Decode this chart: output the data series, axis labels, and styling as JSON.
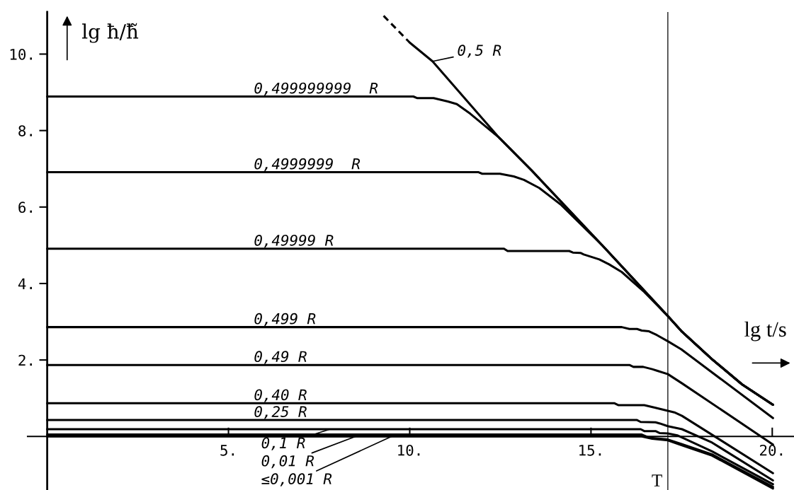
{
  "chart_data": {
    "type": "line",
    "xlabel": "lg t/s",
    "ylabel": "lg ħ/ħ̃",
    "xlim": [
      -0.54,
      20.6
    ],
    "ylim": [
      -1.4,
      11.1
    ],
    "xticks": [
      {
        "value": 5,
        "label": "5."
      },
      {
        "value": 10,
        "label": "10."
      },
      {
        "value": 15,
        "label": "15."
      },
      {
        "value": 20,
        "label": "20."
      }
    ],
    "yticks": [
      {
        "value": 2,
        "label": "2."
      },
      {
        "value": 4,
        "label": "4."
      },
      {
        "value": 6,
        "label": "6."
      },
      {
        "value": 8,
        "label": "8."
      },
      {
        "value": 10,
        "label": "10."
      }
    ],
    "grid": false,
    "ref_lines": [
      {
        "axis": "x",
        "value": 17.12,
        "label": "T"
      }
    ],
    "annotations": [
      {
        "text": "0,5 R",
        "x": 10.63,
        "y": 9.81
      },
      {
        "text": "0,1 R",
        "x": 7.8,
        "y": 0.19
      },
      {
        "text": "0,01 R",
        "x": 8.65,
        "y": 0.05
      },
      {
        "text": "≤0,001 R",
        "x": 9.5,
        "y": 0.0
      }
    ],
    "series": [
      {
        "color": "#000000",
        "x": [
          10.0,
          10.63,
          12.46,
          13.36,
          15.33,
          17.12,
          17.49,
          18.34,
          19.17,
          20.02
        ],
        "values": [
          10.3,
          9.81,
          7.82,
          6.96,
          4.98,
          3.15,
          2.76,
          2.02,
          1.36,
          0.83
        ]
      },
      {
        "color": "#000000",
        "line_style": "dashed",
        "x": [
          9.28,
          10.0
        ],
        "values": [
          11.0,
          10.3
        ]
      },
      {
        "name": "0,499999999  R",
        "color": "#000000",
        "x": [
          0,
          10.1,
          10.2,
          10.66,
          11.05,
          11.3,
          11.67,
          12.46,
          13.36,
          15.33,
          17.12,
          17.49,
          18.34,
          19.17,
          20.02
        ],
        "values": [
          8.89,
          8.89,
          8.85,
          8.85,
          8.76,
          8.69,
          8.44,
          7.82,
          6.96,
          4.98,
          3.15,
          2.76,
          2.02,
          1.36,
          0.83
        ]
      },
      {
        "name": "0,4999999  R",
        "color": "#000000",
        "x": [
          0,
          11.9,
          12.0,
          12.49,
          12.87,
          13.15,
          13.57,
          14.16,
          15.33,
          17.12,
          17.49,
          18.34,
          19.17,
          20.02
        ],
        "values": [
          6.91,
          6.91,
          6.87,
          6.87,
          6.8,
          6.71,
          6.5,
          6.07,
          4.98,
          3.15,
          2.76,
          2.02,
          1.36,
          0.83
        ]
      },
      {
        "name": "0,49999 R",
        "color": "#000000",
        "x": [
          0,
          12.6,
          12.7,
          14.4,
          14.5,
          14.71,
          14.8,
          15.23,
          15.5,
          15.85,
          16.47,
          17.12,
          17.49,
          18.34,
          19.17,
          20.02
        ],
        "values": [
          4.91,
          4.91,
          4.85,
          4.85,
          4.81,
          4.8,
          4.76,
          4.63,
          4.5,
          4.3,
          3.78,
          3.15,
          2.76,
          2.02,
          1.36,
          0.83
        ]
      },
      {
        "name": "0,499 R",
        "color": "#000000",
        "x": [
          0,
          15.85,
          16.06,
          16.27,
          16.4,
          16.6,
          16.82,
          17.12,
          17.49,
          20.02
        ],
        "values": [
          2.86,
          2.86,
          2.81,
          2.81,
          2.77,
          2.75,
          2.65,
          2.49,
          2.28,
          0.48
        ]
      },
      {
        "name": "0,49 R",
        "color": "#000000",
        "x": [
          0,
          16.06,
          16.17,
          16.44,
          16.69,
          16.82,
          17.12,
          17.51,
          20.02
        ],
        "values": [
          1.87,
          1.87,
          1.82,
          1.82,
          1.76,
          1.72,
          1.63,
          1.39,
          -0.21
        ]
      },
      {
        "name": "0,40 R",
        "color": "#000000",
        "x": [
          0,
          15.64,
          15.75,
          16.47,
          16.74,
          17.12,
          17.3,
          17.51,
          20.02
        ],
        "values": [
          0.87,
          0.87,
          0.82,
          0.82,
          0.76,
          0.67,
          0.63,
          0.54,
          -0.96
        ]
      },
      {
        "name": "0,25 R",
        "color": "#000000",
        "x": [
          0,
          16.27,
          16.37,
          16.78,
          16.9,
          17.12,
          17.51,
          18.34,
          20.02
        ],
        "values": [
          0.43,
          0.43,
          0.38,
          0.37,
          0.34,
          0.27,
          0.19,
          -0.16,
          -1.15
        ]
      },
      {
        "color": "#000000",
        "x": [
          0,
          16.37,
          16.47,
          16.78,
          16.89,
          17.12,
          17.38,
          18.34,
          20.02
        ],
        "values": [
          0.19,
          0.19,
          0.14,
          0.14,
          0.09,
          0.08,
          0.03,
          -0.39,
          -1.25
        ]
      },
      {
        "color": "#000000",
        "x": [
          0,
          16.4,
          16.6,
          17.12,
          17.51,
          18.34,
          20.02
        ],
        "values": [
          0.05,
          0.05,
          -0.03,
          -0.08,
          -0.2,
          -0.47,
          -1.32
        ]
      },
      {
        "color": "#000000",
        "x": [
          0,
          16.4,
          16.69,
          17.12,
          17.51,
          18.34,
          20.02
        ],
        "values": [
          0.0,
          0.0,
          -0.06,
          -0.1,
          -0.23,
          -0.5,
          -1.36
        ]
      }
    ]
  }
}
